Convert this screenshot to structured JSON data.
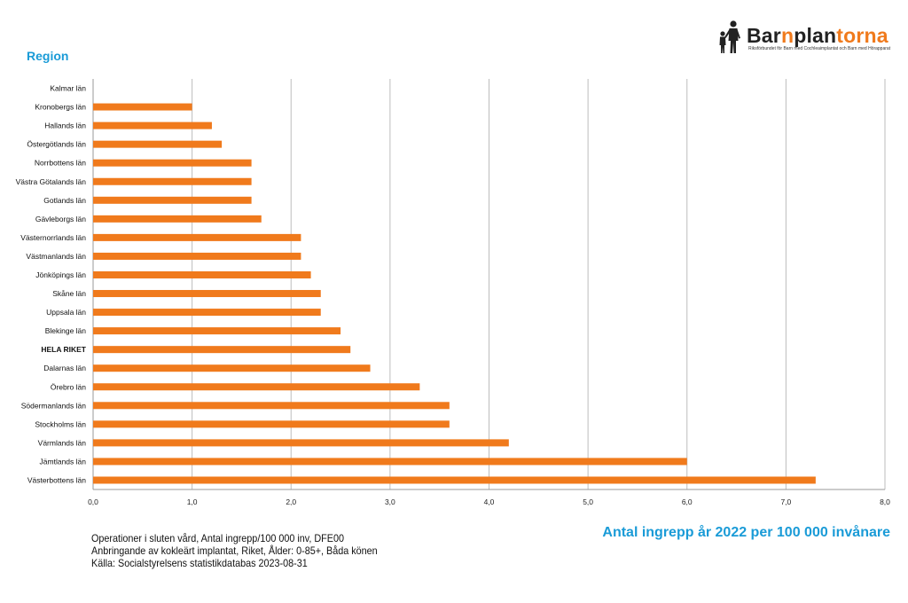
{
  "logo": {
    "name_part1": "Bar",
    "name_part2": "n",
    "name_part3": "plan",
    "name_part4": "torna",
    "tagline": "Riksförbundet för Barn med Cochleaimplantat och Barn med Hörapparat",
    "color_dark": "#222222",
    "color_accent": "#f07a1c"
  },
  "source_lines": [
    "Operationer i sluten vård, Antal ingrepp/100 000 inv, DFE00",
    "Anbringande av kokleärt implantat, Riket, Ålder: 0-85+, Båda könen",
    "Källa: Socialstyrelsens statistikdatabas 2023-08-31"
  ],
  "chart_data": {
    "type": "bar",
    "orientation": "horizontal",
    "ylabel": "Region",
    "xlabel": "Antal ingrepp år 2022 per 100 000 invånare",
    "xlim": [
      0,
      8
    ],
    "xticks": [
      "0,0",
      "1,0",
      "2,0",
      "3,0",
      "4,0",
      "5,0",
      "6,0",
      "7,0",
      "8,0"
    ],
    "grid": "vertical",
    "bar_color": "#f07a1c",
    "highlight_category": "HELA RIKET",
    "categories": [
      "Kalmar län",
      "Kronobergs län",
      "Hallands län",
      "Östergötlands län",
      "Norrbottens län",
      "Västra Götalands län",
      "Gotlands län",
      "Gävleborgs län",
      "Västernorrlands län",
      "Västmanlands län",
      "Jönköpings län",
      "Skåne län",
      "Uppsala län",
      "Blekinge län",
      "HELA RIKET",
      "Dalarnas län",
      "Örebro län",
      "Södermanlands län",
      "Stockholms län",
      "Värmlands län",
      "Jämtlands län",
      "Västerbottens län"
    ],
    "values": [
      0,
      1.0,
      1.2,
      1.3,
      1.6,
      1.6,
      1.6,
      1.7,
      2.1,
      2.1,
      2.2,
      2.3,
      2.3,
      2.5,
      2.6,
      2.8,
      3.3,
      3.6,
      3.6,
      4.2,
      6.0,
      7.3
    ]
  }
}
